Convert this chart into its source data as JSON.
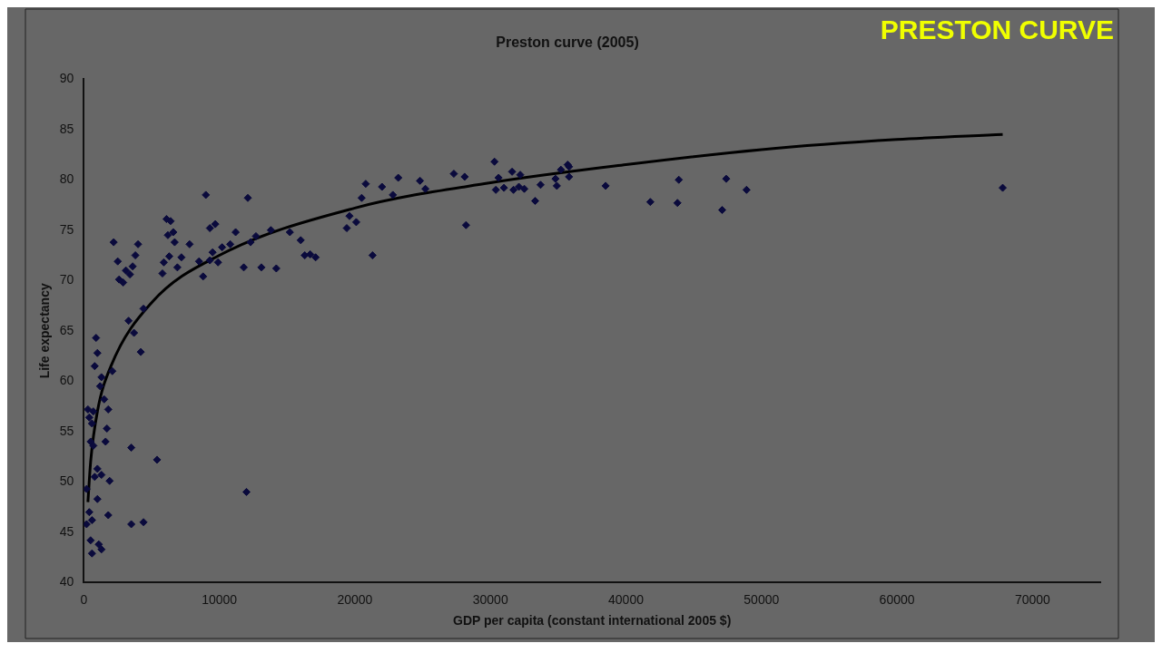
{
  "chart_data": {
    "type": "scatter",
    "title": "Preston curve (2005)",
    "xlabel": "GDP per capita (constant international 2005 $)",
    "ylabel": "Life expectancy",
    "annotations": [
      "PRESTON CURVE"
    ],
    "xlim": [
      0,
      75000
    ],
    "xticks": [
      0,
      10000,
      20000,
      30000,
      40000,
      50000,
      60000,
      70000
    ],
    "ylim": [
      40,
      90
    ],
    "yticks": [
      40,
      45,
      50,
      55,
      60,
      65,
      70,
      75,
      80,
      85,
      90
    ],
    "grid": false,
    "legend": false,
    "series": [
      {
        "marker": "diamond",
        "color": "#0a0a3c",
        "x": [
          20500,
          20800,
          21300,
          22000,
          22800,
          23200,
          24800,
          25200,
          27300,
          28100,
          28200,
          30300,
          30400,
          30600,
          31000,
          31600,
          31700,
          32100,
          32200,
          32500,
          33300,
          33700,
          34800,
          34900,
          35200,
          35700,
          35800,
          35800,
          38500,
          41800,
          43800,
          43900,
          47100,
          47400,
          48900,
          67800,
          12100,
          12300,
          12700,
          13100,
          13800,
          14200,
          15200,
          16000,
          16300,
          16700,
          17100,
          19400,
          19600,
          20100,
          11800,
          12000,
          10800,
          11200,
          10200,
          9900,
          9000,
          9300,
          9700,
          9500,
          9300,
          8500,
          8800,
          7800,
          7200,
          6900,
          6600,
          6400,
          6100,
          6200,
          6300,
          6700,
          5900,
          5800,
          5400,
          4400,
          4200,
          4000,
          3800,
          3600,
          3400,
          3100,
          2900,
          3300,
          3700,
          3500,
          3500,
          4400,
          2200,
          2500,
          2600,
          2100,
          1800,
          1700,
          1600,
          1500,
          1300,
          1200,
          1000,
          900,
          800,
          700,
          600,
          500,
          400,
          300,
          1300,
          1900,
          1000,
          700,
          200,
          200,
          600,
          400,
          1000,
          1100,
          1300,
          600,
          500,
          1800,
          800
        ],
        "values": [
          78.2,
          79.6,
          72.5,
          79.3,
          78.5,
          80.2,
          79.9,
          79.1,
          80.6,
          80.3,
          75.5,
          81.8,
          79.0,
          80.2,
          79.2,
          80.8,
          79.0,
          79.3,
          80.5,
          79.1,
          77.9,
          79.5,
          80.1,
          79.4,
          81.0,
          81.5,
          81.3,
          80.3,
          79.4,
          77.8,
          77.7,
          80.0,
          77.0,
          80.1,
          79.0,
          79.2,
          78.2,
          73.8,
          74.4,
          71.3,
          75.0,
          71.2,
          74.8,
          74.0,
          72.5,
          72.6,
          72.3,
          75.2,
          76.4,
          75.8,
          71.3,
          49.0,
          73.6,
          74.8,
          73.3,
          71.8,
          78.5,
          75.2,
          75.6,
          72.8,
          72.0,
          71.9,
          70.4,
          73.6,
          72.3,
          71.3,
          74.8,
          75.9,
          76.1,
          74.5,
          72.4,
          73.8,
          71.8,
          70.7,
          52.2,
          67.2,
          62.9,
          73.6,
          72.5,
          71.4,
          70.6,
          71.0,
          69.8,
          66.0,
          64.8,
          53.4,
          45.8,
          46.0,
          73.8,
          71.9,
          70.1,
          61.0,
          57.2,
          55.3,
          54.0,
          58.2,
          60.4,
          59.5,
          62.8,
          64.3,
          61.5,
          57.0,
          55.8,
          54.0,
          56.4,
          57.2,
          50.7,
          50.1,
          51.3,
          53.6,
          49.3,
          45.8,
          46.2,
          47.0,
          48.3,
          43.8,
          43.3,
          42.9,
          44.2,
          46.7,
          50.5
        ]
      },
      {
        "type": "line",
        "marker": "none",
        "color": "#000000",
        "x": [
          300,
          500,
          1000,
          2000,
          5000,
          10000,
          20000,
          30000,
          40000,
          50000,
          60000,
          67800
        ],
        "values": [
          48,
          52,
          57,
          61.5,
          67.8,
          72.5,
          77.2,
          79.7,
          81.5,
          83,
          84,
          84.5
        ]
      }
    ]
  }
}
